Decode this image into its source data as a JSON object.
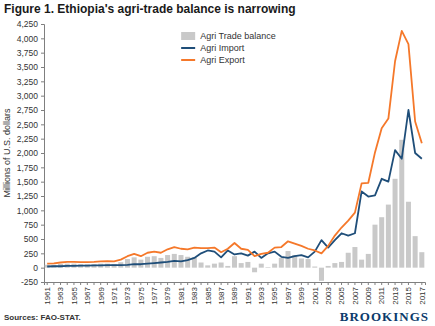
{
  "chart_data": {
    "type": "line",
    "title": "Figure 1. Ethiopia's agri-trade balance is narrowing",
    "y_label": "Millions of U.S. dollars",
    "annotations": [
      "Sources: FAO-STAT.",
      "BROOKINGS"
    ],
    "categories": [
      "1961",
      null,
      "1963",
      null,
      "1965",
      null,
      "1967",
      null,
      "1969",
      null,
      "1971",
      null,
      "1973",
      null,
      "1975",
      null,
      "1977",
      null,
      "1979",
      null,
      "1981",
      null,
      "1983",
      null,
      "1985",
      null,
      "1987",
      null,
      "1989",
      null,
      "1991",
      null,
      "1993",
      null,
      "1995",
      null,
      "1997",
      null,
      "1999",
      null,
      "2001",
      null,
      "2003",
      null,
      "2005",
      null,
      "2007",
      null,
      "2009",
      null,
      "2011",
      null,
      "2013",
      null,
      "2015",
      null,
      "2017"
    ],
    "series": [
      {
        "name": "Agri Trade balance",
        "type": "bar",
        "color": "#c9c9c9",
        "values": [
          50,
          50,
          65,
          70,
          70,
          60,
          60,
          60,
          70,
          70,
          65,
          95,
          150,
          180,
          140,
          190,
          200,
          170,
          220,
          240,
          220,
          190,
          180,
          90,
          40,
          70,
          90,
          30,
          200,
          80,
          100,
          -80,
          70,
          10,
          70,
          170,
          290,
          220,
          160,
          150,
          20,
          -230,
          30,
          80,
          100,
          260,
          360,
          140,
          240,
          750,
          880,
          1100,
          1550,
          2230,
          1150,
          550,
          270
        ]
      },
      {
        "name": "Agri Import",
        "type": "line",
        "color": "#1f4e79",
        "values": [
          20,
          25,
          25,
          30,
          30,
          35,
          35,
          40,
          40,
          45,
          45,
          45,
          50,
          60,
          60,
          70,
          80,
          90,
          100,
          120,
          110,
          130,
          170,
          250,
          300,
          280,
          180,
          300,
          230,
          250,
          210,
          280,
          170,
          250,
          280,
          190,
          170,
          200,
          220,
          180,
          280,
          480,
          350,
          480,
          600,
          560,
          600,
          1330,
          1240,
          1260,
          1550,
          1500,
          2050,
          1900,
          2750,
          2000,
          1900
        ]
      },
      {
        "name": "Agri Export",
        "type": "line",
        "color": "#f5782a",
        "values": [
          70,
          75,
          90,
          100,
          100,
          95,
          95,
          100,
          110,
          115,
          110,
          140,
          200,
          240,
          200,
          260,
          280,
          260,
          320,
          360,
          330,
          320,
          350,
          340,
          340,
          350,
          270,
          330,
          430,
          330,
          310,
          200,
          240,
          260,
          350,
          360,
          460,
          420,
          380,
          330,
          300,
          250,
          380,
          560,
          700,
          820,
          960,
          1470,
          1480,
          2010,
          2430,
          2600,
          3600,
          4130,
          3900,
          2550,
          2170
        ]
      }
    ],
    "ylim": [
      -250,
      4250
    ],
    "yticks": [
      -250,
      0,
      250,
      500,
      750,
      {
        "value": 1000,
        "label": "1,000"
      },
      {
        "value": 1250,
        "label": "1,250"
      },
      {
        "value": 1500,
        "label": "1,500"
      },
      {
        "value": 1750,
        "label": "1,750"
      },
      {
        "value": 2000,
        "label": "2,000"
      },
      {
        "value": 2250,
        "label": "2,250"
      },
      {
        "value": 2500,
        "label": "2,500"
      },
      {
        "value": 2750,
        "label": "2,750"
      },
      {
        "value": 3000,
        "label": "3,000"
      },
      {
        "value": 3250,
        "label": "3,250"
      },
      {
        "value": 3500,
        "label": "3,500"
      },
      {
        "value": 3750,
        "label": "3,750"
      },
      {
        "value": 4000,
        "label": "4,000"
      },
      {
        "value": 4250,
        "label": "4,250"
      }
    ],
    "grid": false,
    "legend": "upper center"
  }
}
